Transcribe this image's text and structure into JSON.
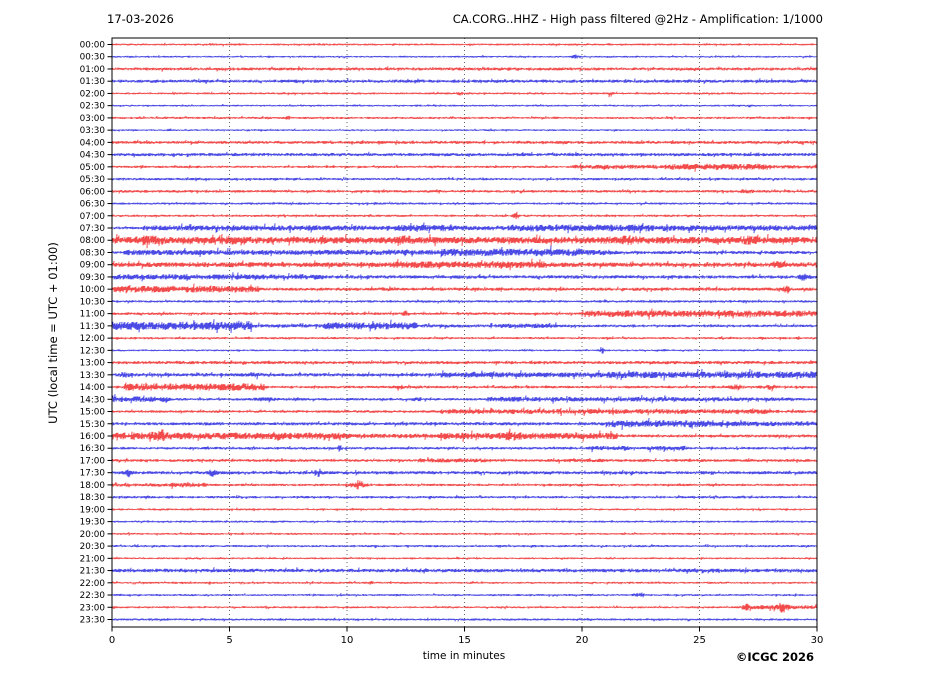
{
  "chart_data": {
    "type": "line",
    "subtype": "helicorder-seismogram",
    "date_label": "17-03-2026",
    "title": "CA.CORG..HHZ - High pass filtered @2Hz - Amplification: 1/1000",
    "xlabel": "time in minutes",
    "ylabel": "UTC (local time = UTC + 01:00)",
    "copyright": "©ICGC 2026",
    "x_range": [
      0,
      30
    ],
    "x_ticks": [
      0,
      5,
      10,
      15,
      20,
      25,
      30
    ],
    "grid_minutes": [
      5,
      10,
      15,
      20,
      25
    ],
    "grid_on": true,
    "legend": "none",
    "colors": {
      "red": "#ee1111",
      "blue": "#1111dd",
      "grid": "#555555",
      "frame": "#000000"
    },
    "rows": [
      {
        "label": "00:00",
        "color": "red",
        "base": 0.55,
        "segments": [],
        "spikes": []
      },
      {
        "label": "00:30",
        "color": "blue",
        "base": 0.5,
        "segments": [],
        "spikes": [
          [
            19.7,
            0.9,
            0.12
          ]
        ]
      },
      {
        "label": "01:00",
        "color": "red",
        "base": 0.8,
        "segments": [],
        "spikes": []
      },
      {
        "label": "01:30",
        "color": "blue",
        "base": 0.85,
        "segments": [],
        "spikes": []
      },
      {
        "label": "02:00",
        "color": "red",
        "base": 0.55,
        "segments": [],
        "spikes": [
          [
            14.8,
            0.8,
            0.1
          ],
          [
            21.2,
            0.7,
            0.1
          ]
        ]
      },
      {
        "label": "02:30",
        "color": "blue",
        "base": 0.5,
        "segments": [],
        "spikes": []
      },
      {
        "label": "03:00",
        "color": "red",
        "base": 0.6,
        "segments": [],
        "spikes": [
          [
            7.5,
            0.6,
            0.1
          ]
        ]
      },
      {
        "label": "03:30",
        "color": "blue",
        "base": 0.5,
        "segments": [],
        "spikes": []
      },
      {
        "label": "04:00",
        "color": "red",
        "base": 0.8,
        "segments": [],
        "spikes": []
      },
      {
        "label": "04:30",
        "color": "blue",
        "base": 0.85,
        "segments": [],
        "spikes": []
      },
      {
        "label": "05:00",
        "color": "red",
        "base": 0.6,
        "segments": [
          [
            19.5,
            23.5,
            1.1
          ],
          [
            23.5,
            28,
            1.6
          ],
          [
            28,
            30,
            1.0
          ]
        ],
        "spikes": []
      },
      {
        "label": "05:30",
        "color": "blue",
        "base": 0.65,
        "segments": [],
        "spikes": []
      },
      {
        "label": "06:00",
        "color": "red",
        "base": 0.7,
        "segments": [],
        "spikes": [
          [
            27,
            0.6,
            0.3
          ]
        ]
      },
      {
        "label": "06:30",
        "color": "blue",
        "base": 0.6,
        "segments": [],
        "spikes": []
      },
      {
        "label": "07:00",
        "color": "red",
        "base": 0.6,
        "segments": [],
        "spikes": [
          [
            17.2,
            2.2,
            0.1
          ]
        ]
      },
      {
        "label": "07:30",
        "color": "blue",
        "base": 0.7,
        "segments": [
          [
            1.3,
            12,
            1.4
          ],
          [
            12,
            14.5,
            1.7
          ],
          [
            14.5,
            17,
            1.3
          ],
          [
            17,
            23,
            1.8
          ],
          [
            23,
            30,
            1.5
          ]
        ],
        "spikes": []
      },
      {
        "label": "08:00",
        "color": "red",
        "base": 0.8,
        "segments": [
          [
            0,
            30,
            1.8
          ]
        ],
        "spikes": [
          [
            1.5,
            0.9,
            0.5
          ],
          [
            5,
            0.8,
            0.4
          ],
          [
            12.5,
            0.8,
            0.4
          ],
          [
            22,
            0.9,
            0.4
          ],
          [
            27,
            0.8,
            0.4
          ]
        ]
      },
      {
        "label": "08:30",
        "color": "blue",
        "base": 0.7,
        "segments": [
          [
            0.5,
            14,
            1.4
          ],
          [
            14,
            20,
            2.0
          ],
          [
            20,
            21.5,
            1.5
          ],
          [
            21.5,
            30,
            0.85
          ]
        ],
        "spikes": []
      },
      {
        "label": "09:00",
        "color": "red",
        "base": 0.8,
        "segments": [
          [
            0,
            12,
            1.3
          ],
          [
            12,
            18.5,
            1.8
          ],
          [
            18.5,
            30,
            1.2
          ]
        ],
        "spikes": [
          [
            28.3,
            0.8,
            0.2
          ]
        ]
      },
      {
        "label": "09:30",
        "color": "blue",
        "base": 0.8,
        "segments": [
          [
            0,
            9,
            1.4
          ],
          [
            9,
            30,
            0.9
          ]
        ],
        "spikes": [
          [
            29.4,
            1.5,
            0.12
          ]
        ]
      },
      {
        "label": "10:00",
        "color": "red",
        "base": 0.7,
        "segments": [
          [
            0,
            6.3,
            1.8
          ],
          [
            6.3,
            30,
            0.85
          ]
        ],
        "spikes": [
          [
            28.7,
            1.1,
            0.15
          ]
        ]
      },
      {
        "label": "10:30",
        "color": "blue",
        "base": 0.65,
        "segments": [],
        "spikes": []
      },
      {
        "label": "11:00",
        "color": "red",
        "base": 0.7,
        "segments": [
          [
            20,
            30,
            1.8
          ]
        ],
        "spikes": [
          [
            12.5,
            1.1,
            0.12
          ]
        ]
      },
      {
        "label": "11:30",
        "color": "blue",
        "base": 0.7,
        "segments": [
          [
            0,
            6,
            2.2
          ],
          [
            6,
            9,
            1.0
          ],
          [
            9,
            13,
            1.9
          ],
          [
            13,
            16.5,
            0.9
          ],
          [
            16.5,
            19,
            1.2
          ]
        ],
        "spikes": []
      },
      {
        "label": "12:00",
        "color": "red",
        "base": 0.6,
        "segments": [],
        "spikes": []
      },
      {
        "label": "12:30",
        "color": "blue",
        "base": 0.5,
        "segments": [],
        "spikes": [
          [
            20.85,
            1.6,
            0.1
          ]
        ]
      },
      {
        "label": "13:00",
        "color": "red",
        "base": 0.85,
        "segments": [],
        "spikes": []
      },
      {
        "label": "13:30",
        "color": "blue",
        "base": 0.9,
        "segments": [
          [
            14,
            21,
            1.4
          ],
          [
            21,
            30,
            1.8
          ]
        ],
        "spikes": [
          [
            0.5,
            0.7,
            0.3
          ],
          [
            6,
            0.6,
            0.3
          ]
        ]
      },
      {
        "label": "14:00",
        "color": "red",
        "base": 0.7,
        "segments": [
          [
            0.5,
            6.5,
            1.9
          ]
        ],
        "spikes": [
          [
            12.2,
            1.3,
            0.15
          ],
          [
            26.5,
            0.8,
            0.3
          ],
          [
            28,
            0.9,
            0.3
          ]
        ]
      },
      {
        "label": "14:30",
        "color": "blue",
        "base": 0.7,
        "segments": [
          [
            0,
            2.5,
            1.5
          ],
          [
            16,
            24,
            1.3
          ],
          [
            24,
            29,
            1.0
          ]
        ],
        "spikes": [
          [
            6.5,
            0.7,
            0.4
          ],
          [
            13,
            0.6,
            0.2
          ]
        ]
      },
      {
        "label": "15:00",
        "color": "red",
        "base": 0.7,
        "segments": [
          [
            14,
            28,
            1.3
          ],
          [
            28,
            30,
            0.9
          ]
        ],
        "spikes": []
      },
      {
        "label": "15:30",
        "color": "blue",
        "base": 0.85,
        "segments": [
          [
            21,
            25.5,
            1.9
          ],
          [
            25.5,
            30,
            1.3
          ]
        ],
        "spikes": []
      },
      {
        "label": "16:00",
        "color": "red",
        "base": 0.8,
        "segments": [
          [
            0,
            10,
            1.8
          ],
          [
            10,
            14,
            1.2
          ],
          [
            14,
            21.5,
            1.7
          ],
          [
            21.5,
            30,
            0.8
          ]
        ],
        "spikes": [
          [
            2,
            0.9,
            0.4
          ],
          [
            7,
            0.8,
            0.4
          ],
          [
            17,
            0.8,
            0.4
          ]
        ]
      },
      {
        "label": "16:30",
        "color": "blue",
        "base": 0.7,
        "segments": [
          [
            20.3,
            22,
            1.2
          ],
          [
            22.8,
            24.5,
            1.2
          ]
        ],
        "spikes": [
          [
            9.7,
            1.2,
            0.08
          ]
        ]
      },
      {
        "label": "17:00",
        "color": "red",
        "base": 0.75,
        "segments": [
          [
            13,
            16,
            1.1
          ],
          [
            19,
            21,
            1.0
          ]
        ],
        "spikes": []
      },
      {
        "label": "17:30",
        "color": "blue",
        "base": 0.85,
        "segments": [],
        "spikes": [
          [
            0.7,
            1.7,
            0.15
          ],
          [
            4.3,
            1.5,
            0.15
          ],
          [
            8.8,
            1.4,
            0.15
          ]
        ]
      },
      {
        "label": "18:00",
        "color": "red",
        "base": 0.65,
        "segments": [
          [
            0,
            2.5,
            0.9
          ],
          [
            2.5,
            4,
            1.3
          ]
        ],
        "spikes": [
          [
            10.45,
            2.0,
            0.28
          ]
        ]
      },
      {
        "label": "18:30",
        "color": "blue",
        "base": 0.65,
        "segments": [],
        "spikes": []
      },
      {
        "label": "19:00",
        "color": "red",
        "base": 0.55,
        "segments": [],
        "spikes": []
      },
      {
        "label": "19:30",
        "color": "blue",
        "base": 0.55,
        "segments": [],
        "spikes": []
      },
      {
        "label": "20:00",
        "color": "red",
        "base": 0.55,
        "segments": [],
        "spikes": []
      },
      {
        "label": "20:30",
        "color": "blue",
        "base": 0.6,
        "segments": [],
        "spikes": []
      },
      {
        "label": "21:00",
        "color": "red",
        "base": 0.5,
        "segments": [],
        "spikes": []
      },
      {
        "label": "21:30",
        "color": "blue",
        "base": 0.95,
        "segments": [],
        "spikes": []
      },
      {
        "label": "22:00",
        "color": "red",
        "base": 0.55,
        "segments": [],
        "spikes": [
          [
            11,
            0.7,
            0.1
          ]
        ]
      },
      {
        "label": "22:30",
        "color": "blue",
        "base": 0.55,
        "segments": [],
        "spikes": [
          [
            22.5,
            0.8,
            0.25
          ]
        ]
      },
      {
        "label": "23:00",
        "color": "red",
        "base": 0.55,
        "segments": [
          [
            26.8,
            30,
            1.1
          ]
        ],
        "spikes": [
          [
            27.0,
            1.2,
            0.08
          ],
          [
            28.5,
            1.8,
            0.3
          ]
        ]
      },
      {
        "label": "23:30",
        "color": "blue",
        "base": 0.6,
        "segments": [],
        "spikes": []
      }
    ]
  }
}
